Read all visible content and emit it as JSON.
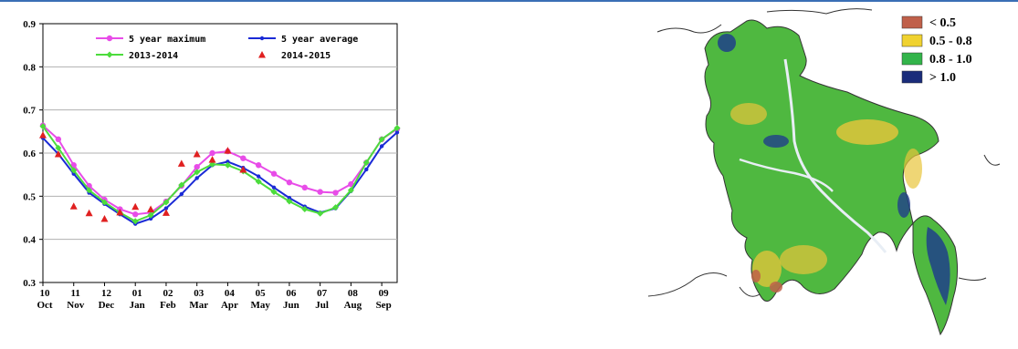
{
  "chart_data": {
    "type": "line",
    "ylim": [
      0.3,
      0.9
    ],
    "y_ticks": [
      "0.3",
      "0.4",
      "0.5",
      "0.6",
      "0.7",
      "0.8",
      "0.9"
    ],
    "x_ticks": [
      {
        "num": "10",
        "month": "Oct"
      },
      {
        "num": "11",
        "month": "Nov"
      },
      {
        "num": "12",
        "month": "Dec"
      },
      {
        "num": "01",
        "month": "Jan"
      },
      {
        "num": "02",
        "month": "Feb"
      },
      {
        "num": "03",
        "month": "Mar"
      },
      {
        "num": "04",
        "month": "Apr"
      },
      {
        "num": "05",
        "month": "May"
      },
      {
        "num": "06",
        "month": "Jun"
      },
      {
        "num": "07",
        "month": "Jul"
      },
      {
        "num": "08",
        "month": "Aug"
      },
      {
        "num": "09",
        "month": "Sep"
      }
    ],
    "x_range": [
      0,
      11.5
    ],
    "grid": "horizontal",
    "legend": "top",
    "series": [
      {
        "name": "5 year maximum",
        "color": "#e84ce8",
        "marker": "circle",
        "x": [
          0,
          0.5,
          1,
          1.5,
          2,
          2.5,
          3,
          3.5,
          4,
          4.5,
          5,
          5.5,
          6,
          6.5,
          7,
          7.5,
          8,
          8.5,
          9,
          9.5,
          10,
          10.5,
          11,
          11.5
        ],
        "y": [
          0.664,
          0.632,
          0.572,
          0.524,
          0.492,
          0.47,
          0.458,
          0.462,
          0.488,
          0.524,
          0.568,
          0.6,
          0.604,
          0.588,
          0.572,
          0.552,
          0.532,
          0.52,
          0.51,
          0.508,
          0.528,
          0.578,
          0.632,
          0.656
        ]
      },
      {
        "name": "5 year average",
        "color": "#1a2ad6",
        "marker": "dot",
        "x": [
          0,
          0.5,
          1,
          1.5,
          2,
          2.5,
          3,
          3.5,
          4,
          4.5,
          5,
          5.5,
          6,
          6.5,
          7,
          7.5,
          8,
          8.5,
          9,
          9.5,
          10,
          10.5,
          11,
          11.5
        ],
        "y": [
          0.635,
          0.598,
          0.552,
          0.508,
          0.482,
          0.458,
          0.436,
          0.448,
          0.472,
          0.505,
          0.542,
          0.572,
          0.58,
          0.566,
          0.546,
          0.52,
          0.496,
          0.476,
          0.462,
          0.472,
          0.512,
          0.562,
          0.616,
          0.648
        ]
      },
      {
        "name": "2013-2014",
        "color": "#4cdc3c",
        "marker": "diamond",
        "x": [
          0,
          0.5,
          1,
          1.5,
          2,
          2.5,
          3,
          3.5,
          4,
          4.5,
          5,
          5.5,
          6,
          6.5,
          7,
          7.5,
          8,
          8.5,
          9,
          9.5,
          10,
          10.5,
          11,
          11.5
        ],
        "y": [
          0.662,
          0.612,
          0.56,
          0.514,
          0.486,
          0.462,
          0.442,
          0.456,
          0.486,
          0.526,
          0.556,
          0.574,
          0.572,
          0.558,
          0.534,
          0.51,
          0.488,
          0.47,
          0.46,
          0.474,
          0.514,
          0.578,
          0.632,
          0.658
        ]
      },
      {
        "name": "2014-2015",
        "color": "#e02020",
        "marker": "triangle",
        "x": [
          0,
          0.5,
          1,
          1.5,
          2,
          2.5,
          3,
          3.5,
          4,
          4.5,
          5,
          5.5,
          6,
          6.5
        ],
        "y": [
          0.642,
          0.598,
          0.477,
          0.461,
          0.448,
          0.463,
          0.476,
          0.47,
          0.462,
          0.576,
          0.598,
          0.585,
          0.606,
          0.562
        ]
      }
    ]
  },
  "map_legend": [
    {
      "label": "< 0.5",
      "color": "#c0604a"
    },
    {
      "label": "0.5 - 0.8",
      "color": "#f0d230"
    },
    {
      "label": "0.8 - 1.0",
      "color": "#32b44a"
    },
    {
      "label": "> 1.0",
      "color": "#1a2c7a"
    }
  ]
}
